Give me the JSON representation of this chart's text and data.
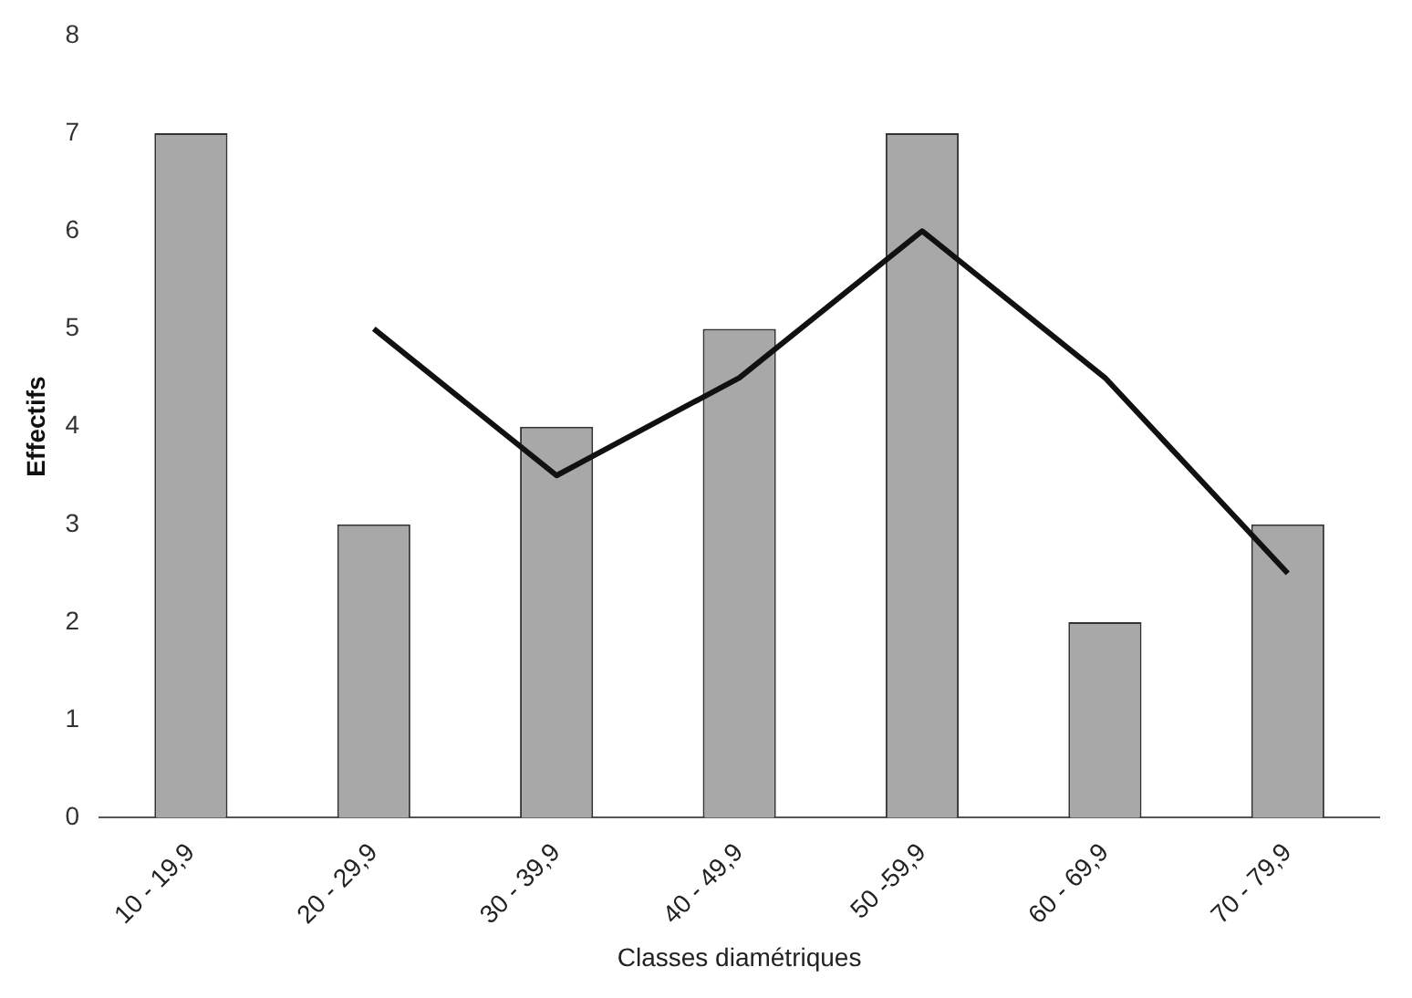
{
  "chart_data": {
    "type": "bar",
    "xlabel": "Classes diamétriques",
    "ylabel": "Effectifs",
    "categories": [
      "10 - 19,9",
      "20 - 29,9",
      "30 - 39,9",
      "40 - 49,9",
      "50 -59,9",
      "60 - 69,9",
      "70 - 79,9"
    ],
    "series": [
      {
        "color": "#a8a8a8",
        "values": [
          7,
          3,
          4,
          5,
          7,
          2,
          3
        ]
      },
      {
        "type": "line",
        "color": "#111111",
        "values": [
          null,
          5,
          3.5,
          4.5,
          6,
          4.5,
          2.5
        ]
      }
    ],
    "ylim": [
      0,
      8
    ],
    "yticks": [
      0,
      1,
      2,
      3,
      4,
      5,
      6,
      7,
      8
    ],
    "grid": false,
    "legend": false,
    "marker": "none"
  }
}
